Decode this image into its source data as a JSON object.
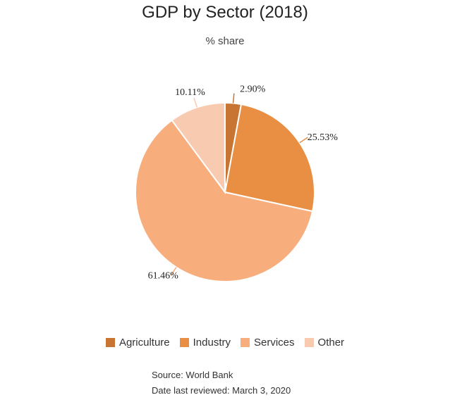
{
  "chart_data": {
    "type": "pie",
    "title": "GDP by Sector (2018)",
    "subtitle": "% share",
    "slices": [
      {
        "name": "Agriculture",
        "value": 2.9,
        "label": "2.90%",
        "color": "#c87533"
      },
      {
        "name": "Industry",
        "value": 25.53,
        "label": "25.53%",
        "color": "#e98f44"
      },
      {
        "name": "Services",
        "value": 61.46,
        "label": "61.46%",
        "color": "#f7ad7c"
      },
      {
        "name": "Other",
        "value": 10.11,
        "label": "10.11%",
        "color": "#f8cbb1"
      }
    ],
    "legend_position": "bottom"
  },
  "footer": {
    "source": "Source: World Bank",
    "reviewed": "Date last reviewed: March 3, 2020"
  }
}
